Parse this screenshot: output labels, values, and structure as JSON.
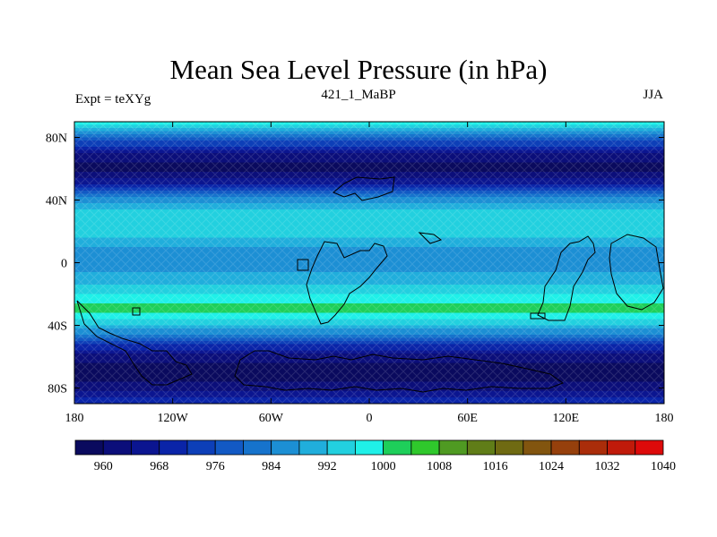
{
  "chart_data": {
    "type": "heatmap",
    "title": "Mean Sea Level Pressure (in hPa)",
    "subtitle": "421_1_MaBP",
    "left_label": "Expt = teXYg",
    "right_label": "JJA",
    "x_ticks": [
      "180",
      "120W",
      "60W",
      "0",
      "60E",
      "120E",
      "180"
    ],
    "y_ticks": [
      "80N",
      "40N",
      "0",
      "40S",
      "80S"
    ],
    "xlim": [
      -180,
      180
    ],
    "ylim": [
      -90,
      90
    ],
    "zonal_mean_profile": {
      "lat": [
        90,
        80,
        70,
        60,
        50,
        40,
        30,
        20,
        10,
        0,
        -10,
        -20,
        -30,
        -40,
        -50,
        -60,
        -70,
        -80,
        -90
      ],
      "value": [
        1004,
        984,
        968,
        962,
        972,
        990,
        1000,
        998,
        992,
        988,
        994,
        1000,
        1006,
        996,
        980,
        966,
        960,
        966,
        975
      ]
    },
    "colorbar": {
      "levels": [
        960,
        964,
        968,
        972,
        976,
        980,
        984,
        988,
        992,
        996,
        1000,
        1004,
        1008,
        1012,
        1016,
        1020,
        1024,
        1028,
        1032,
        1036,
        1040
      ],
      "labels": [
        "960",
        "968",
        "976",
        "984",
        "992",
        "1000",
        "1008",
        "1016",
        "1024",
        "1032",
        "1040"
      ],
      "colors": [
        "#0a0a5e",
        "#0b0e7a",
        "#0b1590",
        "#0a24a8",
        "#0d3fb8",
        "#1259c4",
        "#1673cc",
        "#1c8fd4",
        "#20aedc",
        "#22d0df",
        "#1ff0e8",
        "#1ecf5a",
        "#2fc82c",
        "#4f9a22",
        "#607d18",
        "#6f6a12",
        "#82550f",
        "#96400c",
        "#aa2d0a",
        "#c01a0a",
        "#dd0a0a"
      ]
    }
  }
}
